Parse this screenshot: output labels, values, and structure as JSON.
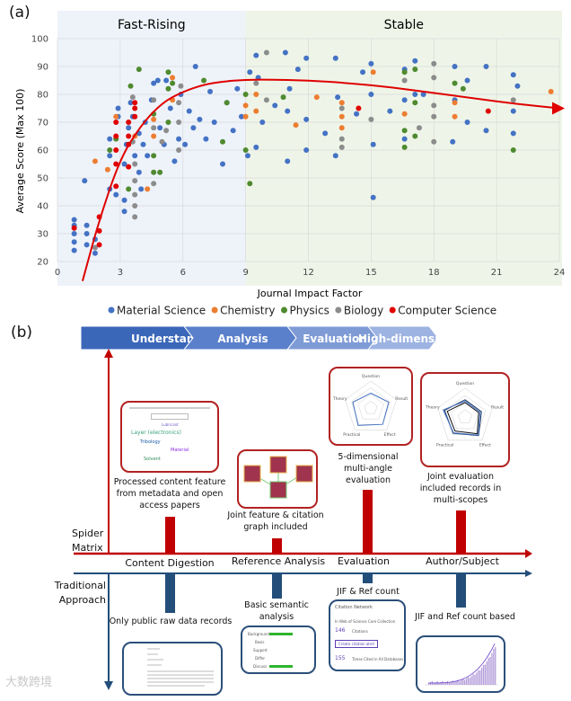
{
  "panel_a_label": "(a)",
  "panel_b_label": "(b)",
  "chart_data": {
    "type": "scatter",
    "title": "",
    "xlabel": "Journal Impact Factor",
    "ylabel": "Average Score (Max 100)",
    "xlim": [
      0,
      24
    ],
    "ylim": [
      20,
      100
    ],
    "xticks": [
      "0",
      "3",
      "6",
      "9",
      "12",
      "15",
      "18",
      "21",
      "24"
    ],
    "yticks": [
      "20",
      "30",
      "40",
      "50",
      "60",
      "70",
      "80",
      "90",
      "100"
    ],
    "grid": true,
    "legend_position": "bottom",
    "regions": [
      {
        "label": "Fast-Rising",
        "x_range": [
          0,
          9
        ],
        "color": "#eef3fa"
      },
      {
        "label": "Stable",
        "x_range": [
          9,
          24
        ],
        "color": "#eef5e8"
      }
    ],
    "series": [
      {
        "name": "Material Science",
        "color": "#4472c4",
        "points": [
          [
            0.8,
            24
          ],
          [
            0.8,
            27
          ],
          [
            0.8,
            30
          ],
          [
            0.8,
            33
          ],
          [
            0.8,
            35
          ],
          [
            1.3,
            49
          ],
          [
            1.4,
            26
          ],
          [
            1.4,
            30
          ],
          [
            1.4,
            33
          ],
          [
            1.8,
            23
          ],
          [
            1.8,
            28
          ],
          [
            2.5,
            46
          ],
          [
            2.5,
            58
          ],
          [
            2.5,
            64
          ],
          [
            2.8,
            44
          ],
          [
            2.9,
            72
          ],
          [
            2.9,
            75
          ],
          [
            3.2,
            38
          ],
          [
            3.2,
            42
          ],
          [
            3.2,
            55
          ],
          [
            3.3,
            62
          ],
          [
            3.4,
            68
          ],
          [
            3.5,
            77
          ],
          [
            3.6,
            72
          ],
          [
            3.7,
            58
          ],
          [
            3.9,
            52
          ],
          [
            3.9,
            66
          ],
          [
            4.0,
            46
          ],
          [
            4.1,
            62
          ],
          [
            4.2,
            70
          ],
          [
            4.3,
            58
          ],
          [
            4.5,
            78
          ],
          [
            4.6,
            84
          ],
          [
            4.8,
            85
          ],
          [
            4.9,
            68
          ],
          [
            5.1,
            62
          ],
          [
            5.2,
            85
          ],
          [
            5.4,
            75
          ],
          [
            5.6,
            56
          ],
          [
            5.8,
            64
          ],
          [
            5.9,
            80
          ],
          [
            6.1,
            62
          ],
          [
            6.3,
            74
          ],
          [
            6.5,
            68
          ],
          [
            6.6,
            90
          ],
          [
            6.8,
            71
          ],
          [
            7.1,
            64
          ],
          [
            7.3,
            81
          ],
          [
            7.5,
            70
          ],
          [
            7.9,
            55
          ],
          [
            8.1,
            77
          ],
          [
            8.4,
            67
          ],
          [
            8.6,
            82
          ],
          [
            8.8,
            72
          ],
          [
            9.1,
            58
          ],
          [
            9.2,
            88
          ],
          [
            9.5,
            94
          ],
          [
            9.5,
            61
          ],
          [
            9.6,
            86
          ],
          [
            9.8,
            70
          ],
          [
            10.4,
            76
          ],
          [
            10.9,
            95
          ],
          [
            11.0,
            74
          ],
          [
            11.0,
            56
          ],
          [
            11.1,
            82
          ],
          [
            11.5,
            89
          ],
          [
            11.9,
            93
          ],
          [
            11.9,
            60
          ],
          [
            11.9,
            71
          ],
          [
            12.8,
            66
          ],
          [
            13.3,
            93
          ],
          [
            13.3,
            58
          ],
          [
            13.4,
            79
          ],
          [
            14.3,
            73
          ],
          [
            14.6,
            88
          ],
          [
            15.0,
            91
          ],
          [
            15.0,
            80
          ],
          [
            15.1,
            62
          ],
          [
            15.1,
            43
          ],
          [
            15.9,
            74
          ],
          [
            16.6,
            89
          ],
          [
            16.6,
            78
          ],
          [
            16.6,
            64
          ],
          [
            17.1,
            92
          ],
          [
            17.1,
            80
          ],
          [
            17.5,
            80
          ],
          [
            18.9,
            63
          ],
          [
            19.0,
            90
          ],
          [
            19.0,
            78
          ],
          [
            19.6,
            70
          ],
          [
            19.6,
            85
          ],
          [
            20.5,
            90
          ],
          [
            20.5,
            67
          ],
          [
            21.8,
            87
          ],
          [
            21.8,
            74
          ],
          [
            21.8,
            66
          ],
          [
            22.0,
            83
          ]
        ]
      },
      {
        "name": "Chemistry",
        "color": "#ed7d31",
        "points": [
          [
            1.8,
            56
          ],
          [
            2.8,
            72
          ],
          [
            2.4,
            53
          ],
          [
            3.7,
            65
          ],
          [
            4.3,
            46
          ],
          [
            4.6,
            71
          ],
          [
            4.6,
            65
          ],
          [
            5.5,
            86
          ],
          [
            5.5,
            78
          ],
          [
            9.0,
            76
          ],
          [
            9.5,
            80
          ],
          [
            9.5,
            74
          ],
          [
            9.0,
            72
          ],
          [
            11.4,
            69
          ],
          [
            12.4,
            79
          ],
          [
            13.6,
            77
          ],
          [
            13.6,
            72
          ],
          [
            13.6,
            68
          ],
          [
            15.1,
            88
          ],
          [
            16.6,
            73
          ],
          [
            19.0,
            77
          ],
          [
            19.0,
            72
          ],
          [
            23.6,
            81
          ]
        ]
      },
      {
        "name": "Physics",
        "color": "#4f8a2f",
        "points": [
          [
            2.5,
            60
          ],
          [
            2.8,
            64
          ],
          [
            3.4,
            46
          ],
          [
            3.5,
            83
          ],
          [
            3.9,
            89
          ],
          [
            4.6,
            52
          ],
          [
            4.6,
            58
          ],
          [
            4.6,
            73
          ],
          [
            4.9,
            52
          ],
          [
            5.3,
            88
          ],
          [
            5.3,
            82
          ],
          [
            5.3,
            70
          ],
          [
            5.5,
            84
          ],
          [
            7.0,
            85
          ],
          [
            8.1,
            77
          ],
          [
            7.9,
            63
          ],
          [
            9.0,
            80
          ],
          [
            9.0,
            60
          ],
          [
            9.2,
            48
          ],
          [
            10.8,
            79
          ],
          [
            16.6,
            88
          ],
          [
            16.6,
            67
          ],
          [
            16.6,
            61
          ],
          [
            17.1,
            89
          ],
          [
            17.1,
            77
          ],
          [
            17.1,
            65
          ],
          [
            19.0,
            84
          ],
          [
            19.4,
            82
          ],
          [
            21.8,
            60
          ]
        ]
      },
      {
        "name": "Biology",
        "color": "#8c8c8c",
        "points": [
          [
            1.8,
            25
          ],
          [
            3.6,
            79
          ],
          [
            3.6,
            63
          ],
          [
            3.7,
            55
          ],
          [
            3.7,
            49
          ],
          [
            3.7,
            44
          ],
          [
            3.7,
            40
          ],
          [
            3.7,
            36
          ],
          [
            4.6,
            78
          ],
          [
            4.6,
            68
          ],
          [
            4.6,
            48
          ],
          [
            5.0,
            63
          ],
          [
            5.2,
            67
          ],
          [
            5.8,
            77
          ],
          [
            5.8,
            70
          ],
          [
            5.8,
            60
          ],
          [
            5.9,
            83
          ],
          [
            9.5,
            84
          ],
          [
            10.0,
            95
          ],
          [
            10.0,
            78
          ],
          [
            13.6,
            75
          ],
          [
            13.6,
            64
          ],
          [
            13.6,
            61
          ],
          [
            15.0,
            71
          ],
          [
            16.6,
            85
          ],
          [
            17.3,
            68
          ],
          [
            18.0,
            91
          ],
          [
            18.0,
            86
          ],
          [
            18.0,
            76
          ],
          [
            18.0,
            72
          ],
          [
            18.0,
            63
          ],
          [
            21.8,
            78
          ]
        ]
      },
      {
        "name": "Computer Science",
        "color": "#e00000",
        "points": [
          [
            0.8,
            32
          ],
          [
            2.0,
            36
          ],
          [
            2.0,
            31
          ],
          [
            2.0,
            26
          ],
          [
            2.8,
            70
          ],
          [
            2.8,
            65
          ],
          [
            2.8,
            60
          ],
          [
            2.8,
            55
          ],
          [
            2.8,
            47
          ],
          [
            3.4,
            70
          ],
          [
            3.4,
            65
          ],
          [
            3.4,
            62
          ],
          [
            3.4,
            54
          ],
          [
            3.7,
            77
          ],
          [
            3.7,
            75
          ],
          [
            3.7,
            72
          ],
          [
            14.4,
            75
          ],
          [
            20.6,
            74
          ]
        ]
      }
    ],
    "trend": {
      "color": "#e00000",
      "points": [
        [
          1.2,
          13
        ],
        [
          2,
          35
        ],
        [
          3,
          57
        ],
        [
          4,
          69
        ],
        [
          5,
          77
        ],
        [
          6,
          81
        ],
        [
          7,
          83.5
        ],
        [
          8,
          84.7
        ],
        [
          9,
          85.2
        ],
        [
          10,
          85.3
        ],
        [
          12,
          85
        ],
        [
          14,
          84
        ],
        [
          16,
          82.5
        ],
        [
          18,
          80.5
        ],
        [
          20,
          78.5
        ],
        [
          22,
          76.5
        ],
        [
          24,
          75
        ]
      ]
    }
  },
  "banner": {
    "steps": [
      {
        "label": "Understand",
        "color": "#3b67b9"
      },
      {
        "label": "Analysis",
        "color": "#5a80cb"
      },
      {
        "label": "Evaluation",
        "color": "#7f9bd6"
      },
      {
        "label": "High-dimension",
        "color": "#9db3e2"
      }
    ]
  },
  "axes": {
    "spider_label": "Spider Matrix",
    "traditional_label": "Traditional Approach",
    "spider_color": "#c00000",
    "traditional_color": "#234e7a"
  },
  "categories": [
    {
      "label": "Content Digestion",
      "spider_caption": "Processed content feature from metadata and open access papers",
      "traditional_caption": "Only public raw data records"
    },
    {
      "label": "Reference Analysis",
      "spider_caption": "Joint feature & citation graph included",
      "traditional_caption": "Basic semantic analysis"
    },
    {
      "label": "Evaluation",
      "spider_caption": "5-dimensional multi-angle evaluation",
      "traditional_caption": "JIF & Ref count"
    },
    {
      "label": "Author/Subject",
      "spider_caption": "Joint evaluation included records in multi-scopes",
      "traditional_caption": "JIF and Ref count based"
    }
  ],
  "thumbs": {
    "wordcloud_words": [
      "Layer (electronics)",
      "Lubricant",
      "Material",
      "Solvent",
      "Tribology"
    ],
    "radar_axes": [
      "Question",
      "Result",
      "Effect",
      "Practical",
      "Theory"
    ],
    "semantic_rows": [
      "Background",
      "Basis",
      "Support",
      "Differ",
      "Discuss"
    ],
    "citation": {
      "title": "Citation Network",
      "subtitle": "In Web of Science Core Collection",
      "citations": "146",
      "citations_label": "Citations",
      "alert_button": "Create citation alert",
      "times_cited": "155",
      "times_cited_label": "Times Cited in All Databases"
    }
  },
  "watermark": "大数跨境"
}
